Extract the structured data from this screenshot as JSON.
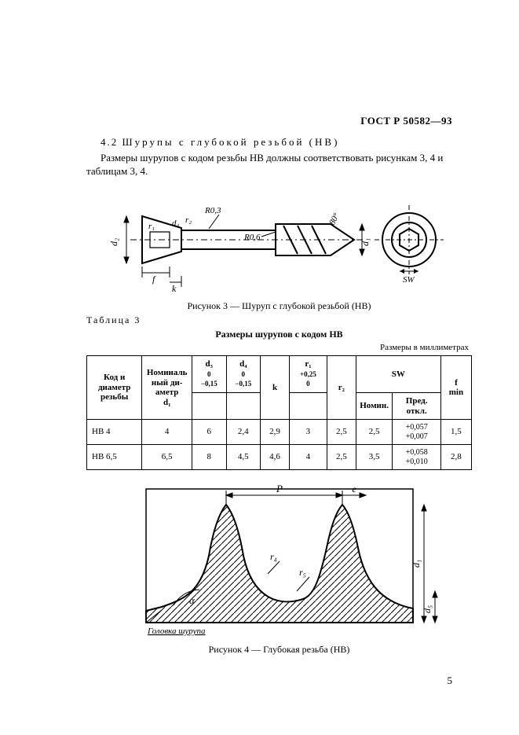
{
  "header": {
    "standard": "ГОСТ Р 50582—93"
  },
  "section": {
    "num": "4.2",
    "title": "Шурупы с глубокой резьбой (HB)",
    "body": "Размеры шурупов с кодом резьбы HB должны соответствовать рисункам 3, 4 и таблицам 3, 4."
  },
  "figure3": {
    "caption": "Рисунок 3 — Шуруп с глубокой резьбой (HB)",
    "labels": {
      "r03": "R0,3",
      "r06": "R0,6",
      "ang80": "80°",
      "d1": "d₁",
      "d2": "d₂",
      "d4": "d₄",
      "r1": "r₁",
      "r2": "r₂",
      "f": "f",
      "k": "k",
      "sw": "SW"
    }
  },
  "table3": {
    "label": "Таблица 3",
    "title": "Размеры шурупов с кодом HB",
    "units": "Размеры в миллиметрах",
    "head": {
      "c1": "Код и\nдиаметр\nрезьбы",
      "c2": "Номиналь\nный ди-\nаметр\nd₁",
      "c3_top": "d₃",
      "c3_bot": "0\n−0,15",
      "c4_top": "d₄",
      "c4_bot": "0\n−0,15",
      "c5": "k",
      "c6_top": "r₁",
      "c6_bot": "+0,25\n0",
      "c7": "r₂",
      "c8": "SW",
      "c8a": "Номин.",
      "c8b": "Пред.\nоткл.",
      "c9": "f\nmin"
    },
    "rows": [
      {
        "code": "HB 4",
        "d1": "4",
        "d3": "6",
        "d4": "2,4",
        "k": "2,9",
        "r1": "3",
        "r2": "2,5",
        "swn": "2,5",
        "swt": "+0,057\n+0,007",
        "f": "1,5"
      },
      {
        "code": "HB 6,5",
        "d1": "6,5",
        "d3": "8",
        "d4": "4,5",
        "k": "4,6",
        "r1": "4",
        "r2": "2,5",
        "swn": "3,5",
        "swt": "+0,058\n+0,010",
        "f": "2,8"
      }
    ]
  },
  "figure4": {
    "caption": "Рисунок 4 — Глубокая резьба (HB)",
    "labels": {
      "p": "P",
      "e": "e",
      "r4": "r₄",
      "r5": "r₅",
      "d1": "d₁",
      "d5": "d₅",
      "alpha": "α",
      "head_note": "Головка\nшурупа"
    }
  },
  "page": {
    "number": "5"
  }
}
